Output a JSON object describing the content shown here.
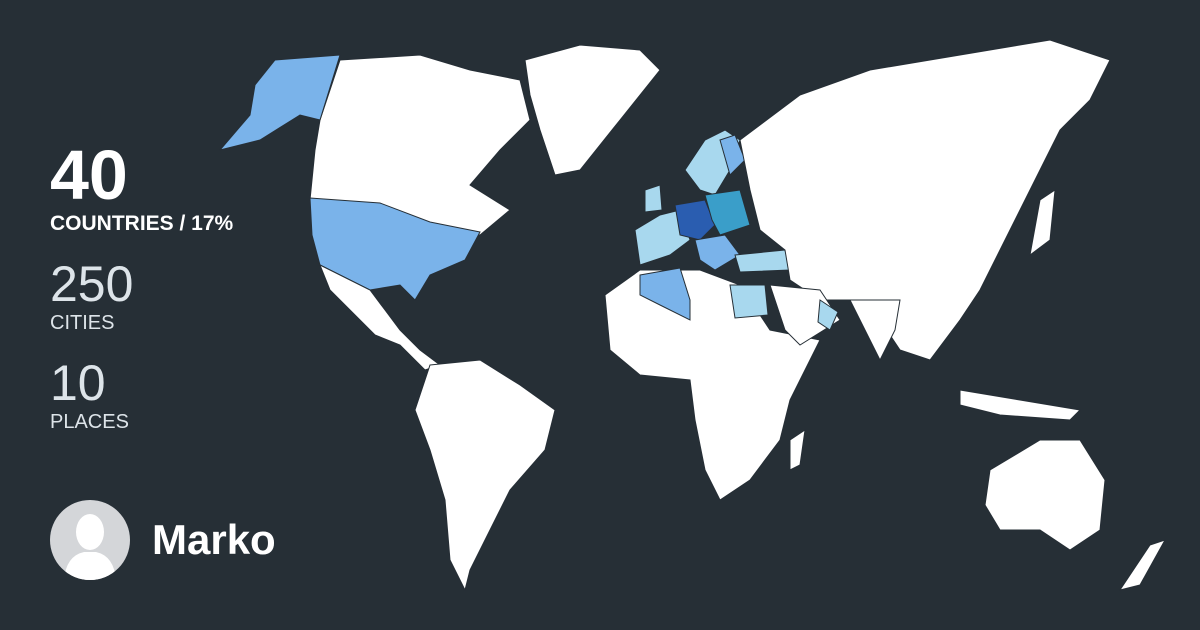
{
  "stats": {
    "countries": {
      "value": "40",
      "label": "COUNTRIES / 17%"
    },
    "cities": {
      "value": "250",
      "label": "CITIES"
    },
    "places": {
      "value": "10",
      "label": "PLACES"
    }
  },
  "user": {
    "name": "Marko",
    "avatar_icon": "user-silhouette-icon"
  },
  "colors": {
    "background": "#262f36",
    "unvisited": "#ffffff",
    "visited_light": "#a8d8ee",
    "visited_medium": "#7ab3ea",
    "visited_teal": "#3a9ec9",
    "visited_dark": "#2a5db0"
  }
}
